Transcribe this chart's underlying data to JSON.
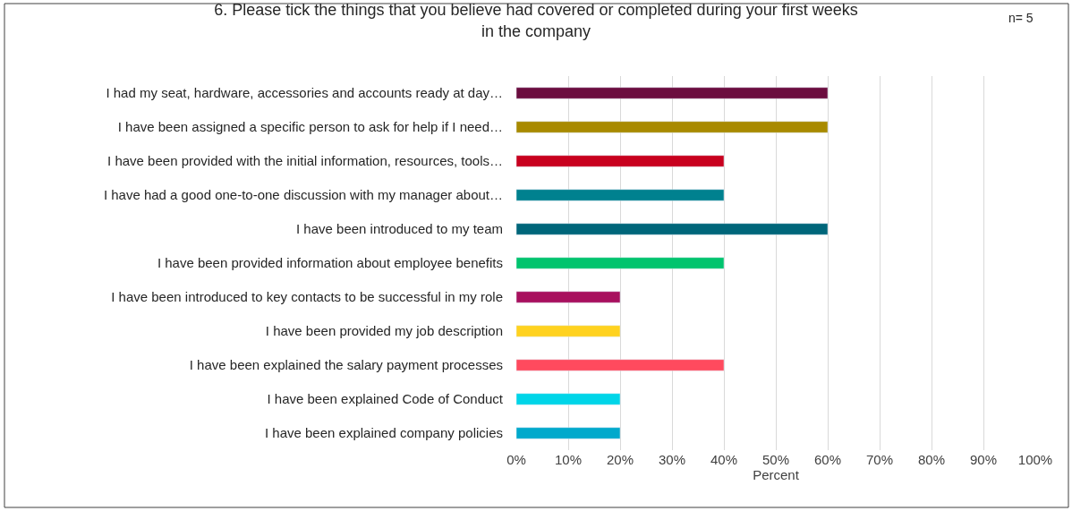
{
  "chart_data": {
    "type": "bar",
    "orientation": "horizontal",
    "title": "6. Please tick the things that you believe had covered or completed during your first weeks in the company",
    "xlabel": "Percent",
    "annotations": [
      "n= 5"
    ],
    "categories": [
      "I had my seat, hardware, accessories and accounts ready at day…",
      "I have been assigned a specific person to ask for help if I need…",
      "I have been provided with the initial information, resources, tools…",
      "I have had a good one-to-one discussion with my manager about…",
      "I have been introduced to my team",
      "I have been provided information about employee benefits",
      "I have been introduced to key contacts to be successful in my role",
      "I have been provided my job description",
      "I have been explained the salary payment processes",
      "I have been explained Code of Conduct",
      "I have been explained company policies"
    ],
    "values": [
      60,
      60,
      40,
      40,
      60,
      40,
      20,
      20,
      40,
      20,
      20
    ],
    "colors": [
      "#6b0d3f",
      "#a88a00",
      "#c8001e",
      "#00818f",
      "#00667a",
      "#00c46e",
      "#a8105e",
      "#ffd21f",
      "#ff4a5e",
      "#00d5e8",
      "#00a9cc"
    ],
    "xlim": [
      0,
      100
    ],
    "xticks": [
      {
        "value": 0,
        "label": "0%"
      },
      {
        "value": 10,
        "label": "10%"
      },
      {
        "value": 20,
        "label": "20%"
      },
      {
        "value": 30,
        "label": "30%"
      },
      {
        "value": 40,
        "label": "40%"
      },
      {
        "value": 50,
        "label": "50%"
      },
      {
        "value": 60,
        "label": "60%"
      },
      {
        "value": 70,
        "label": "70%"
      },
      {
        "value": 80,
        "label": "80%"
      },
      {
        "value": 90,
        "label": "90%"
      },
      {
        "value": 100,
        "label": "100%"
      }
    ],
    "grid": "x"
  }
}
